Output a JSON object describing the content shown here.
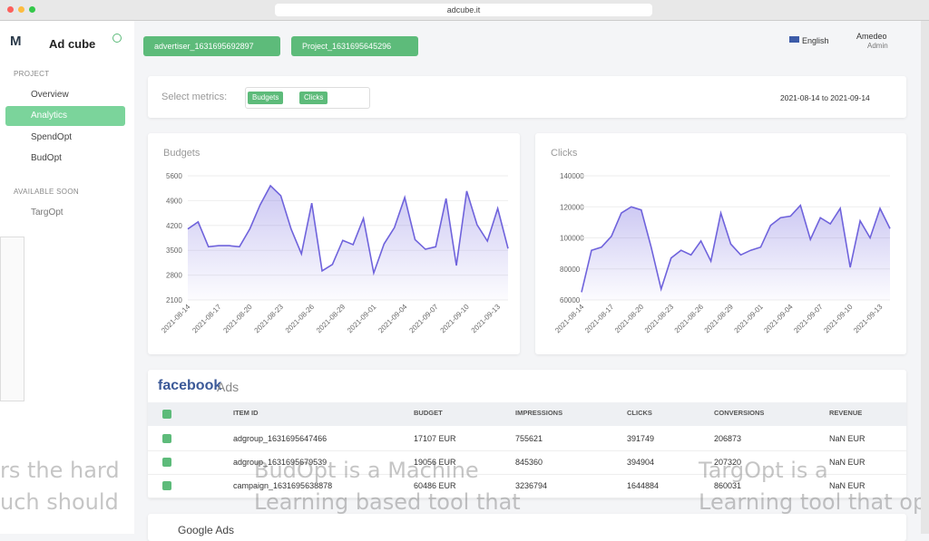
{
  "browser": {
    "url": "adcube.it"
  },
  "sidebar": {
    "logo": "Ad cube",
    "section_project": "PROJECT",
    "items": [
      "Overview",
      "Analytics",
      "SpendOpt",
      "BudOpt"
    ],
    "section_soon": "AVAILABLE SOON",
    "soon_items": [
      "TargOpt"
    ]
  },
  "topbar": {
    "advertiser": "advertiser_1631695692897",
    "project": "Project_1631695645296",
    "language": "English",
    "user": "Amedeo",
    "role": "Admin"
  },
  "metrics": {
    "label": "Select metrics:",
    "tags": [
      "Budgets",
      "Clicks"
    ],
    "date_range": "2021-08-14 to 2021-09-14"
  },
  "chart_data": [
    {
      "type": "line",
      "title": "Budgets",
      "color": "#6f63dc",
      "grid": true,
      "categories": [
        "2021-08-14",
        null,
        null,
        "2021-08-17",
        null,
        null,
        "2021-08-20",
        null,
        null,
        "2021-08-23",
        null,
        null,
        "2021-08-26",
        null,
        null,
        "2021-08-29",
        null,
        null,
        "2021-09-01",
        null,
        null,
        "2021-09-04",
        null,
        null,
        "2021-09-07",
        null,
        null,
        "2021-09-10",
        null,
        null,
        "2021-09-13",
        null
      ],
      "values": [
        4100,
        4300,
        3600,
        3630,
        3630,
        3600,
        4100,
        4780,
        5320,
        5040,
        4100,
        3400,
        4830,
        2920,
        3100,
        3780,
        3660,
        4400,
        2860,
        3680,
        4140,
        4990,
        3800,
        3530,
        3600,
        4960,
        3070,
        5170,
        4220,
        3760,
        4680,
        3550
      ],
      "ylim": [
        2100,
        5600
      ],
      "yticks": [
        2100,
        2800,
        3500,
        4200,
        4900,
        5600
      ]
    },
    {
      "type": "line",
      "title": "Clicks",
      "color": "#6f63dc",
      "grid": true,
      "categories": [
        "2021-08-14",
        null,
        null,
        "2021-08-17",
        null,
        null,
        "2021-08-20",
        null,
        null,
        "2021-08-23",
        null,
        null,
        "2021-08-26",
        null,
        null,
        "2021-08-29",
        null,
        null,
        "2021-09-01",
        null,
        null,
        "2021-09-04",
        null,
        null,
        "2021-09-07",
        null,
        null,
        "2021-09-10",
        null,
        null,
        "2021-09-13",
        null
      ],
      "values": [
        65000,
        92000,
        94000,
        101000,
        116000,
        120000,
        118000,
        94000,
        67000,
        87000,
        92000,
        89000,
        98000,
        85000,
        116000,
        96000,
        89000,
        92000,
        94000,
        108000,
        113000,
        114000,
        121000,
        99000,
        113000,
        109000,
        119000,
        81000,
        111000,
        100000,
        119000,
        106000
      ],
      "ylim": [
        60000,
        140000
      ],
      "yticks": [
        60000,
        80000,
        100000,
        120000,
        140000
      ]
    }
  ],
  "facebook": {
    "brand": "facebook",
    "suffix": "Ads",
    "columns": [
      "ITEM ID",
      "BUDGET",
      "IMPRESSIONS",
      "CLICKS",
      "CONVERSIONS",
      "REVENUE"
    ],
    "rows": [
      [
        "adgroup_1631695647466",
        "17107 EUR",
        "755621",
        "391749",
        "206873",
        "NaN EUR"
      ],
      [
        "adgroup_1631695679539",
        "19056 EUR",
        "845360",
        "394904",
        "207320",
        "NaN EUR"
      ],
      [
        "campaign_1631695638878",
        "60486 EUR",
        "3236794",
        "1644884",
        "860031",
        "NaN EUR"
      ]
    ]
  },
  "google": {
    "title": "Google Ads"
  },
  "background_text": [
    "rs the hard",
    "uch should",
    "BudOpt is a Machine",
    "Learning based tool that",
    "TargOpt is a",
    "Learning tool that op"
  ]
}
